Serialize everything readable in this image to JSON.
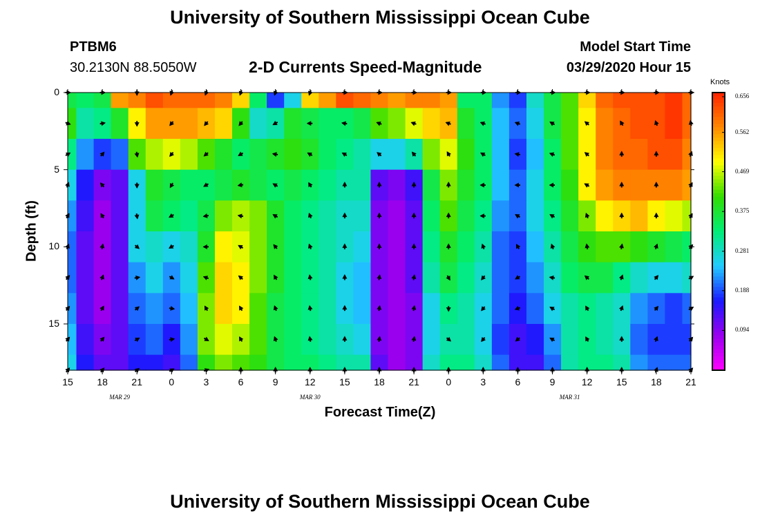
{
  "header": {
    "title": "University of Southern Mississippi Ocean Cube",
    "station": "PTBM6",
    "coords": "30.2130N 88.5050W",
    "subtitle": "2-D Currents Speed-Magnitude",
    "model_label": "Model Start Time",
    "model_time": "03/29/2020 Hour 15"
  },
  "footer": {
    "title": "University of Southern Mississippi Ocean Cube"
  },
  "colors": {
    "scale": [
      "#ff00ff",
      "#9900ee",
      "#1a1aff",
      "#22ccff",
      "#00ee77",
      "#33dd00",
      "#ffff00",
      "#ff8800",
      "#ff2200"
    ]
  },
  "chart_data": {
    "type": "heatmap",
    "title": "2-D Currents Speed-Magnitude",
    "xlabel": "Forecast Time(Z)",
    "ylabel": "Depth (ft)",
    "x_ticks": [
      "15",
      "18",
      "21",
      "0",
      "3",
      "6",
      "9",
      "12",
      "15",
      "18",
      "21",
      "0",
      "3",
      "6",
      "9",
      "12",
      "15",
      "18",
      "21"
    ],
    "x_tick_hours": [
      0,
      3,
      6,
      9,
      12,
      15,
      18,
      21,
      24,
      27,
      30,
      33,
      36,
      39,
      42,
      45,
      48,
      51,
      54
    ],
    "xlim": [
      0,
      54
    ],
    "date_labels": [
      {
        "text": "MAR  29",
        "hour": 4.5
      },
      {
        "text": "MAR  30",
        "hour": 21
      },
      {
        "text": "MAR  31",
        "hour": 43.5
      }
    ],
    "y_ticks": [
      "0",
      "5",
      "10",
      "15"
    ],
    "y_tick_values": [
      0,
      5,
      10,
      15
    ],
    "ylim": [
      0,
      18
    ],
    "colorbar": {
      "label": "Knots",
      "ticks": [
        "0.656",
        "0.562",
        "0.469",
        "0.375",
        "0.281",
        "0.188",
        "0.094"
      ],
      "tick_values": [
        0.656,
        0.562,
        0.469,
        0.375,
        0.281,
        0.188,
        0.094
      ],
      "range": [
        0.0,
        0.656
      ]
    },
    "columns_hours": [
      0,
      1.5,
      3,
      4.5,
      6,
      7.5,
      9,
      10.5,
      12,
      13.5,
      15,
      16.5,
      18,
      19.5,
      21,
      22.5,
      24,
      25.5,
      27,
      28.5,
      30,
      31.5,
      33,
      34.5,
      36,
      37.5,
      39,
      40.5,
      42,
      43.5,
      45,
      46.5,
      48,
      49.5,
      51,
      52.5,
      54
    ],
    "rows_depth": [
      0,
      2,
      4,
      6,
      8,
      10,
      12,
      14,
      16,
      18
    ],
    "speed_knots": [
      [
        0.36,
        0.34,
        0.36,
        0.56,
        0.58,
        0.62,
        0.6,
        0.6,
        0.6,
        0.58,
        0.52,
        0.34,
        0.18,
        0.26,
        0.52,
        0.56,
        0.62,
        0.6,
        0.58,
        0.56,
        0.58,
        0.58,
        0.56,
        0.34,
        0.34,
        0.22,
        0.18,
        0.28,
        0.36,
        0.42,
        0.52,
        0.6,
        0.62,
        0.62,
        0.62,
        0.64,
        0.6
      ],
      [
        0.4,
        0.3,
        0.32,
        0.38,
        0.5,
        0.56,
        0.56,
        0.56,
        0.54,
        0.52,
        0.4,
        0.28,
        0.3,
        0.38,
        0.36,
        0.34,
        0.34,
        0.36,
        0.42,
        0.44,
        0.48,
        0.52,
        0.54,
        0.38,
        0.34,
        0.24,
        0.2,
        0.26,
        0.36,
        0.42,
        0.5,
        0.58,
        0.6,
        0.62,
        0.62,
        0.64,
        0.6
      ],
      [
        0.32,
        0.22,
        0.18,
        0.2,
        0.42,
        0.46,
        0.48,
        0.46,
        0.42,
        0.38,
        0.34,
        0.36,
        0.38,
        0.4,
        0.38,
        0.34,
        0.32,
        0.3,
        0.26,
        0.26,
        0.3,
        0.44,
        0.48,
        0.4,
        0.34,
        0.24,
        0.18,
        0.24,
        0.34,
        0.42,
        0.5,
        0.58,
        0.6,
        0.6,
        0.62,
        0.62,
        0.58
      ],
      [
        0.26,
        0.16,
        0.1,
        0.12,
        0.26,
        0.38,
        0.36,
        0.34,
        0.34,
        0.36,
        0.38,
        0.36,
        0.34,
        0.36,
        0.34,
        0.32,
        0.3,
        0.3,
        0.12,
        0.1,
        0.14,
        0.36,
        0.44,
        0.38,
        0.34,
        0.24,
        0.2,
        0.26,
        0.34,
        0.4,
        0.5,
        0.56,
        0.58,
        0.58,
        0.58,
        0.58,
        0.56
      ],
      [
        0.22,
        0.14,
        0.08,
        0.12,
        0.26,
        0.36,
        0.34,
        0.32,
        0.36,
        0.44,
        0.46,
        0.44,
        0.38,
        0.34,
        0.32,
        0.3,
        0.28,
        0.28,
        0.1,
        0.08,
        0.12,
        0.34,
        0.42,
        0.36,
        0.32,
        0.22,
        0.2,
        0.26,
        0.32,
        0.38,
        0.44,
        0.5,
        0.52,
        0.54,
        0.5,
        0.48,
        0.46
      ],
      [
        0.2,
        0.12,
        0.08,
        0.12,
        0.26,
        0.28,
        0.26,
        0.28,
        0.38,
        0.5,
        0.48,
        0.44,
        0.38,
        0.34,
        0.32,
        0.3,
        0.28,
        0.26,
        0.1,
        0.08,
        0.12,
        0.32,
        0.38,
        0.34,
        0.3,
        0.2,
        0.18,
        0.24,
        0.3,
        0.36,
        0.4,
        0.42,
        0.42,
        0.4,
        0.38,
        0.36,
        0.34
      ],
      [
        0.2,
        0.12,
        0.08,
        0.12,
        0.22,
        0.26,
        0.22,
        0.26,
        0.42,
        0.52,
        0.5,
        0.44,
        0.38,
        0.34,
        0.32,
        0.3,
        0.26,
        0.24,
        0.1,
        0.08,
        0.12,
        0.3,
        0.36,
        0.32,
        0.28,
        0.2,
        0.18,
        0.22,
        0.28,
        0.34,
        0.36,
        0.36,
        0.32,
        0.28,
        0.26,
        0.26,
        0.28
      ],
      [
        0.22,
        0.12,
        0.08,
        0.12,
        0.2,
        0.22,
        0.2,
        0.24,
        0.44,
        0.52,
        0.5,
        0.42,
        0.36,
        0.34,
        0.32,
        0.3,
        0.26,
        0.24,
        0.1,
        0.08,
        0.1,
        0.26,
        0.32,
        0.3,
        0.26,
        0.2,
        0.16,
        0.2,
        0.26,
        0.3,
        0.32,
        0.3,
        0.28,
        0.22,
        0.2,
        0.18,
        0.2
      ],
      [
        0.24,
        0.14,
        0.1,
        0.12,
        0.18,
        0.2,
        0.16,
        0.22,
        0.44,
        0.48,
        0.46,
        0.42,
        0.36,
        0.34,
        0.32,
        0.3,
        0.28,
        0.26,
        0.1,
        0.08,
        0.1,
        0.26,
        0.3,
        0.3,
        0.26,
        0.18,
        0.14,
        0.16,
        0.22,
        0.3,
        0.32,
        0.3,
        0.28,
        0.2,
        0.18,
        0.18,
        0.18
      ],
      [
        0.26,
        0.16,
        0.12,
        0.12,
        0.16,
        0.16,
        0.14,
        0.2,
        0.4,
        0.44,
        0.42,
        0.4,
        0.36,
        0.34,
        0.34,
        0.32,
        0.3,
        0.3,
        0.12,
        0.08,
        0.1,
        0.28,
        0.32,
        0.32,
        0.28,
        0.2,
        0.14,
        0.14,
        0.2,
        0.3,
        0.32,
        0.32,
        0.3,
        0.22,
        0.2,
        0.2,
        0.2
      ]
    ],
    "arrow_depths": [
      0,
      2,
      4,
      6,
      8,
      10,
      12,
      14,
      16,
      18
    ],
    "arrow_hours": [
      0,
      3,
      6,
      9,
      12,
      15,
      18,
      21,
      24,
      27,
      30,
      33,
      36,
      39,
      42,
      45,
      48,
      51,
      54
    ],
    "direction_deg": [
      [
        90,
        90,
        180,
        200,
        200,
        200,
        200,
        200,
        90,
        90,
        90,
        90,
        90,
        90,
        90,
        90,
        90,
        90,
        90
      ],
      [
        110,
        80,
        180,
        220,
        220,
        220,
        240,
        270,
        280,
        290,
        290,
        290,
        290,
        290,
        300,
        310,
        330,
        340,
        350
      ],
      [
        60,
        40,
        170,
        220,
        230,
        240,
        280,
        300,
        300,
        310,
        320,
        330,
        300,
        280,
        290,
        310,
        0,
        0,
        20
      ],
      [
        20,
        320,
        180,
        210,
        240,
        260,
        300,
        330,
        0,
        0,
        0,
        0,
        270,
        270,
        270,
        300,
        0,
        0,
        30
      ],
      [
        30,
        330,
        170,
        240,
        260,
        280,
        300,
        340,
        0,
        0,
        0,
        0,
        270,
        300,
        300,
        340,
        0,
        0,
        30
      ],
      [
        20,
        10,
        130,
        240,
        270,
        300,
        320,
        340,
        0,
        0,
        0,
        0,
        340,
        330,
        340,
        350,
        10,
        20,
        40
      ],
      [
        40,
        20,
        80,
        120,
        290,
        310,
        330,
        350,
        0,
        10,
        10,
        150,
        220,
        240,
        280,
        310,
        20,
        40,
        60
      ],
      [
        40,
        30,
        50,
        100,
        330,
        330,
        340,
        350,
        0,
        10,
        10,
        180,
        220,
        250,
        300,
        330,
        20,
        40,
        60
      ],
      [
        40,
        40,
        60,
        80,
        120,
        330,
        340,
        350,
        0,
        10,
        10,
        130,
        220,
        230,
        300,
        330,
        0,
        20,
        40
      ],
      [
        40,
        40,
        50,
        60,
        70,
        0,
        0,
        0,
        0,
        0,
        0,
        0,
        0,
        0,
        0,
        0,
        0,
        20,
        40
      ]
    ]
  }
}
